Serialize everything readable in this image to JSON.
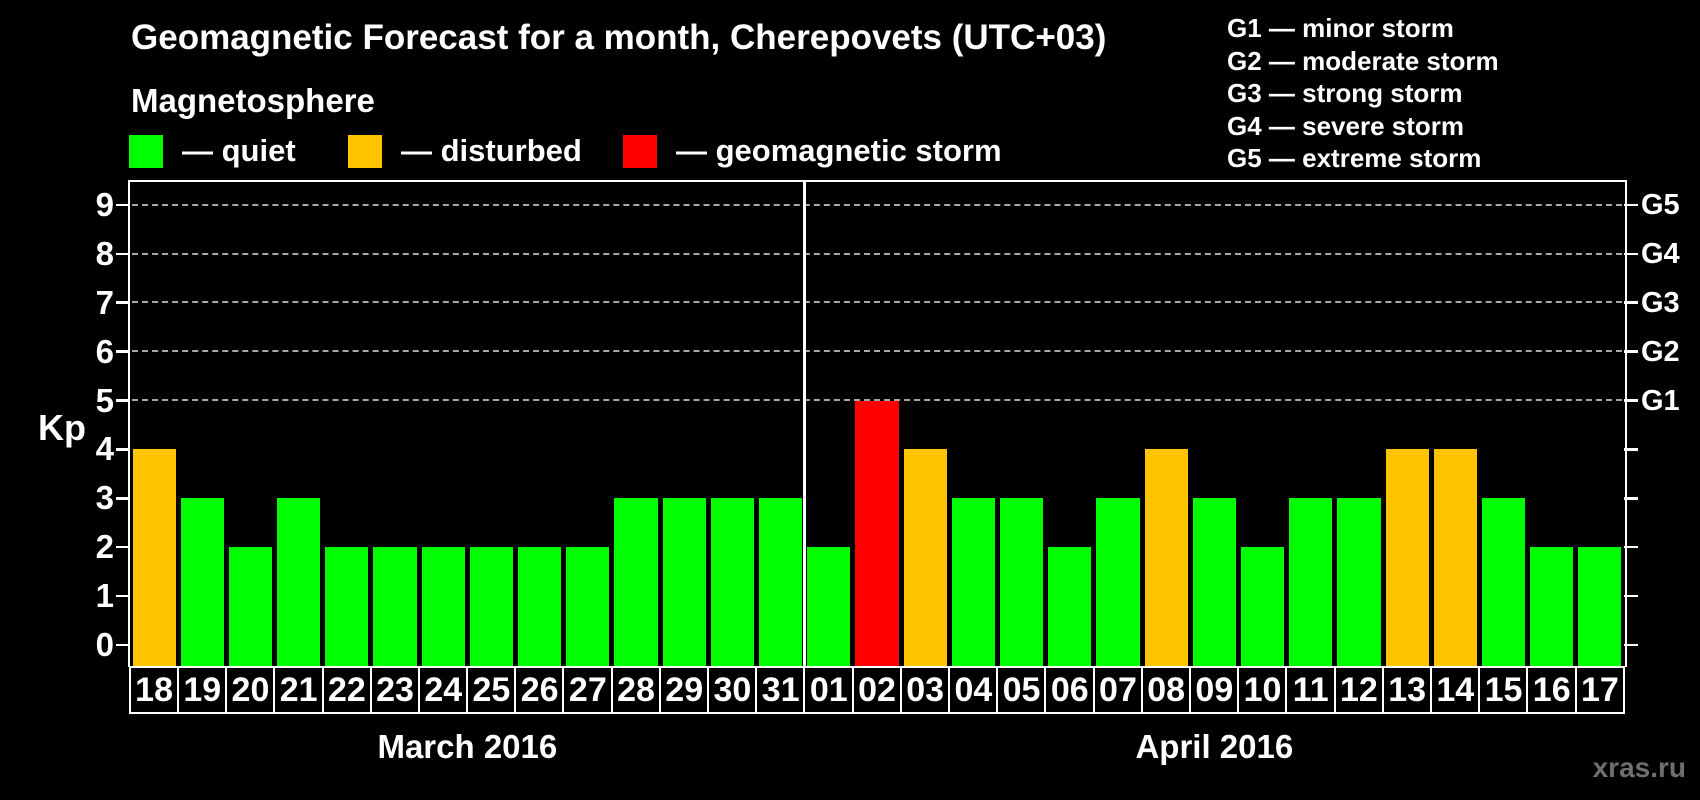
{
  "header": {
    "title": "Geomagnetic Forecast for a month, Cherepovets (UTC+03)",
    "subtitle": "Magnetosphere"
  },
  "legend": {
    "items": [
      {
        "label": "— quiet",
        "status": "quiet",
        "color": "#00ff00"
      },
      {
        "label": "— disturbed",
        "status": "disturbed",
        "color": "#ffc400"
      },
      {
        "label": "— geomagnetic storm",
        "status": "storm",
        "color": "#ff0000"
      }
    ]
  },
  "storm_scale_legend": {
    "lines": [
      "G1 — minor storm",
      "G2 — moderate storm",
      "G3 — strong storm",
      "G4 — severe storm",
      "G5 — extreme storm"
    ]
  },
  "watermark": "xras.ru",
  "chart_data": {
    "type": "bar",
    "title": "Geomagnetic Forecast for a month, Cherepovets (UTC+03)",
    "ylabel": "Kp",
    "ylim": [
      0,
      9
    ],
    "yticks": [
      0,
      1,
      2,
      3,
      4,
      5,
      6,
      7,
      8,
      9
    ],
    "grid_levels": [
      5,
      6,
      7,
      8,
      9
    ],
    "grid_style": "dashed",
    "legend_position": "top",
    "right_axis": [
      {
        "level": 5,
        "label": "G1"
      },
      {
        "level": 6,
        "label": "G2"
      },
      {
        "level": 7,
        "label": "G3"
      },
      {
        "level": 8,
        "label": "G4"
      },
      {
        "level": 9,
        "label": "G5"
      }
    ],
    "colors": {
      "quiet": "#00ff00",
      "disturbed": "#ffc400",
      "storm": "#ff0000"
    },
    "groups": [
      {
        "label": "March 2016",
        "bars": [
          {
            "day": "18",
            "kp": 4,
            "status": "disturbed"
          },
          {
            "day": "19",
            "kp": 3,
            "status": "quiet"
          },
          {
            "day": "20",
            "kp": 2,
            "status": "quiet"
          },
          {
            "day": "21",
            "kp": 3,
            "status": "quiet"
          },
          {
            "day": "22",
            "kp": 2,
            "status": "quiet"
          },
          {
            "day": "23",
            "kp": 2,
            "status": "quiet"
          },
          {
            "day": "24",
            "kp": 2,
            "status": "quiet"
          },
          {
            "day": "25",
            "kp": 2,
            "status": "quiet"
          },
          {
            "day": "26",
            "kp": 2,
            "status": "quiet"
          },
          {
            "day": "27",
            "kp": 2,
            "status": "quiet"
          },
          {
            "day": "28",
            "kp": 3,
            "status": "quiet"
          },
          {
            "day": "29",
            "kp": 3,
            "status": "quiet"
          },
          {
            "day": "30",
            "kp": 3,
            "status": "quiet"
          },
          {
            "day": "31",
            "kp": 3,
            "status": "quiet"
          }
        ]
      },
      {
        "label": "April 2016",
        "bars": [
          {
            "day": "01",
            "kp": 2,
            "status": "quiet"
          },
          {
            "day": "02",
            "kp": 5,
            "status": "storm"
          },
          {
            "day": "03",
            "kp": 4,
            "status": "disturbed"
          },
          {
            "day": "04",
            "kp": 3,
            "status": "quiet"
          },
          {
            "day": "05",
            "kp": 3,
            "status": "quiet"
          },
          {
            "day": "06",
            "kp": 2,
            "status": "quiet"
          },
          {
            "day": "07",
            "kp": 3,
            "status": "quiet"
          },
          {
            "day": "08",
            "kp": 4,
            "status": "disturbed"
          },
          {
            "day": "09",
            "kp": 3,
            "status": "quiet"
          },
          {
            "day": "10",
            "kp": 2,
            "status": "quiet"
          },
          {
            "day": "11",
            "kp": 3,
            "status": "quiet"
          },
          {
            "day": "12",
            "kp": 3,
            "status": "quiet"
          },
          {
            "day": "13",
            "kp": 4,
            "status": "disturbed"
          },
          {
            "day": "14",
            "kp": 4,
            "status": "disturbed"
          },
          {
            "day": "15",
            "kp": 3,
            "status": "quiet"
          },
          {
            "day": "16",
            "kp": 2,
            "status": "quiet"
          },
          {
            "day": "17",
            "kp": 2,
            "status": "quiet"
          }
        ]
      }
    ]
  }
}
